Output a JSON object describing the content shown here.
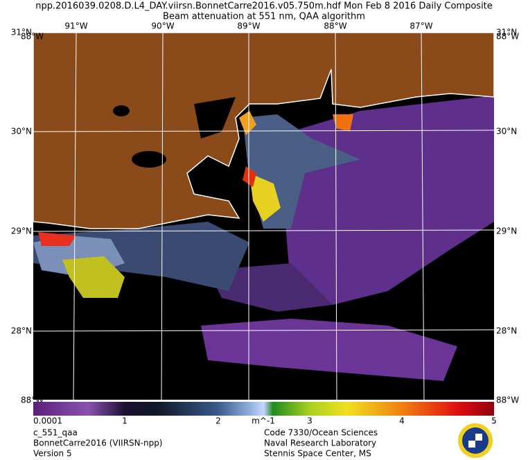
{
  "header": {
    "line1": "npp.2016039.0208.D.L4_DAY.viirsn.BonnetCarre2016.v05.750m.hdf     Mon Feb  8 2016 Daily Composite",
    "line2": "Beam attenuation at 551 nm, QAA algorithm"
  },
  "map": {
    "longitudes": [
      "91°W",
      "90°W",
      "89°W",
      "88°W",
      "87°W"
    ],
    "latitudes": [
      "31°N",
      "30°N",
      "29°N",
      "28°N"
    ],
    "corner_top": "88°W",
    "corner_bottom": "88°W"
  },
  "colorbar": {
    "labels": [
      "0.0001",
      "1",
      "2",
      "3",
      "4",
      "5"
    ],
    "units": "m^-1"
  },
  "footer": {
    "left": [
      "c_551_qaa",
      "BonnetCarre2016 (VIIRSN-npp)",
      "Version 5"
    ],
    "right": [
      "Code 7330/Ocean Sciences",
      "Naval Research Laboratory",
      "Stennis Space Center, MS"
    ]
  }
}
